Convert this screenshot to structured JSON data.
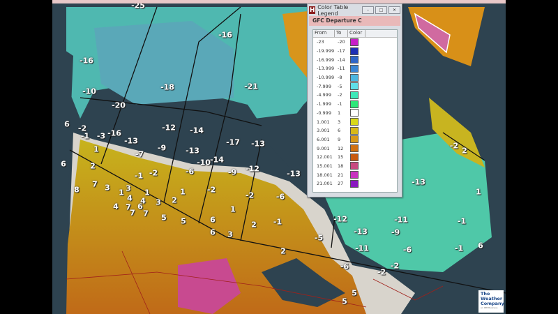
{
  "legend_window": {
    "title": "Color Table Legend",
    "subtitle": "GFC Departure C",
    "columns": [
      "From",
      "To",
      "Color"
    ],
    "rows": [
      {
        "from": "-23",
        "to": "-20",
        "color": "#c81ec8"
      },
      {
        "from": "-19.999",
        "to": "-17",
        "color": "#1e2fb4"
      },
      {
        "from": "-16.999",
        "to": "-14",
        "color": "#2f66c8"
      },
      {
        "from": "-13.999",
        "to": "-11",
        "color": "#3a86d6"
      },
      {
        "from": "-10.999",
        "to": "-8",
        "color": "#4cb6e0"
      },
      {
        "from": "-7.999",
        "to": "-5",
        "color": "#5edfe8"
      },
      {
        "from": "-4.999",
        "to": "-2",
        "color": "#3ee8b8"
      },
      {
        "from": "-1.999",
        "to": "-1",
        "color": "#2ee87a"
      },
      {
        "from": "-0.999",
        "to": "1",
        "color": "#ffffff"
      },
      {
        "from": "1.001",
        "to": "3",
        "color": "#d8d818"
      },
      {
        "from": "3.001",
        "to": "6",
        "color": "#d8b818"
      },
      {
        "from": "6.001",
        "to": "9",
        "color": "#d89818"
      },
      {
        "from": "9.001",
        "to": "12",
        "color": "#d07010"
      },
      {
        "from": "12.001",
        "to": "15",
        "color": "#c85a10"
      },
      {
        "from": "15.001",
        "to": "18",
        "color": "#c84a80"
      },
      {
        "from": "18.001",
        "to": "21",
        "color": "#c830c0"
      },
      {
        "from": "21.001",
        "to": "27",
        "color": "#8a18c0"
      }
    ]
  },
  "map_labels": [
    "-25",
    "-16",
    "-16",
    "-10",
    "-20",
    "-18",
    "-21",
    "6",
    "-2",
    "-1",
    "-3",
    "-16",
    "-13",
    "1",
    "2",
    "6",
    "-7",
    "-9",
    "-12",
    "-14",
    "-13",
    "-10",
    "-14",
    "-1",
    "-2",
    "-6",
    "8",
    "7",
    "3",
    "1",
    "3",
    "4",
    "1",
    "4",
    "6",
    "7",
    "7",
    "7",
    "4",
    "3",
    "2",
    "1",
    "5",
    "5",
    "-2",
    "6",
    "6",
    "3",
    "-17",
    "-13",
    "-9",
    "-12",
    "-13",
    "-2",
    "-6",
    "1",
    "2",
    "-1",
    "-5",
    "2",
    "-12",
    "-13",
    "-11",
    "-11",
    "-9",
    "-6",
    "-6",
    "-2",
    "-2",
    "5",
    "5",
    "-13",
    "-2",
    "2",
    "1",
    "-1",
    "-1",
    "6"
  ],
  "logo": {
    "line1": "The",
    "line2": "Weather",
    "line3": "Company",
    "tagline": "an IBM Business"
  }
}
